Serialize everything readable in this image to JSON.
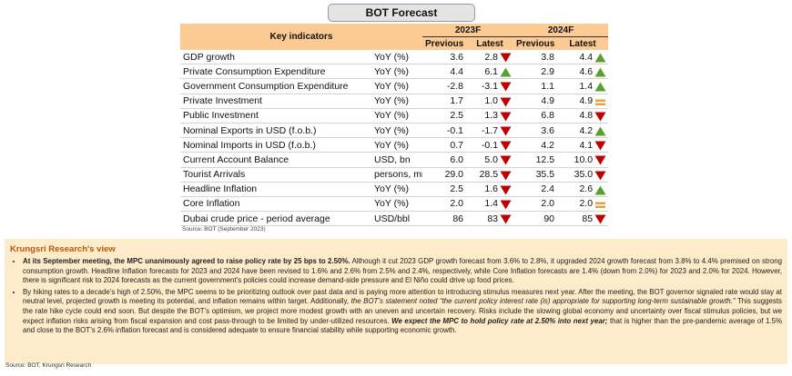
{
  "header": {
    "title": "BOT Forecast"
  },
  "table": {
    "key_header": "Key indicators",
    "years": [
      "2023F",
      "2024F"
    ],
    "subheaders": [
      "Previous",
      "Latest",
      "Previous",
      "Latest"
    ],
    "rows": [
      [
        "GDP growth",
        "YoY (%)",
        "3.6",
        "2.8",
        "3.8",
        "4.4"
      ],
      [
        "Private Consumption Expenditure",
        "YoY (%)",
        "4.4",
        "6.1",
        "2.9",
        "4.6"
      ],
      [
        "Government Consumption Expenditure",
        "YoY (%)",
        "-2.8",
        "-3.1",
        "1.1",
        "1.4"
      ],
      [
        "Private Investment",
        "YoY (%)",
        "1.7",
        "1.0",
        "4.9",
        "4.9"
      ],
      [
        "Public Investment",
        "YoY (%)",
        "2.5",
        "1.3",
        "6.8",
        "4.8"
      ],
      [
        "Nominal Exports in USD (f.o.b.)",
        "YoY (%)",
        "-0.1",
        "-1.7",
        "3.6",
        "4.2"
      ],
      [
        "Nominal Imports in USD (f.o.b.)",
        "YoY (%)",
        "0.7",
        "-0.1",
        "4.2",
        "4.1"
      ],
      [
        "Current Account Balance",
        "USD, bn",
        "6.0",
        "5.0",
        "12.5",
        "10.0"
      ],
      [
        "Tourist Arrivals",
        "persons, mn",
        "29.0",
        "28.5",
        "35.5",
        "35.0"
      ],
      [
        "Headline Inflation",
        "YoY (%)",
        "2.5",
        "1.6",
        "2.4",
        "2.6"
      ],
      [
        "Core Inflation",
        "YoY (%)",
        "2.0",
        "1.4",
        "2.0",
        "2.0"
      ],
      [
        "Dubai crude price - period average",
        "USD/bbl",
        "86",
        "83",
        "90",
        "85"
      ]
    ],
    "source": "Source: BOT (September 2023)"
  },
  "view": {
    "title": "Krungsri Research's view",
    "bullets": [
      [
        "At its September meeting, the MPC unanimously agreed to raise  policy rate by 25 bps to 2.50%.",
        " Although it cut 2023 GDP growth forecast from 3.6% to 2.8%, it upgraded 2024 growth forecast from 3.8% to 4.4% premised on strong consumption growth. Headline Inflation forecasts for 2023 and 2024 have been revised to 1.6% and 2.6% from 2.5% and 2.4%, respectively, while Core Inflation forecasts are 1.4% (down from 2.0%) for 2023 and 2.0% for 2024. However, there is significant risk to 2024 forecasts as the current government’s policies could increase demand-side pressure and El Niño could drive up food prices."
      ],
      [
        "By hiking rates to a decade’s high of 2.50%, the MPC seems to be prioritizing outlook over past data and is paying more attention to introducing stimulus measures next year. After the meeting, the BOT governor signaled rate would stay at neutral level, projected growth is meeting its potential, and inflation remains within target. Additionally, ",
        "the BOT’s statement noted “the current policy interest rate (is) appropriate for supporting long-term sustainable growth.”",
        " This suggests the rate hike cycle could end soon. But despite the BOT’s optimism, we project more modest growth with an uneven and uncertain recovery. Risks include the slowing global economy and uncertainty over fiscal stimulus policies, but we expect inflation risks arising from fiscal expansion and cost pass-through to be limited by under-utilized resources. ",
        "We expect the MPC to hold policy rate at 2.50% into next year;",
        " that is higher than the pre-pandemic average of 1.5% and close to the BOT’s 2.6% inflation forecast and is considered adequate to ensure financial stability while supporting economic growth."
      ]
    ]
  },
  "footer": {
    "source": "Source: BOT, Krungsri Research"
  }
}
